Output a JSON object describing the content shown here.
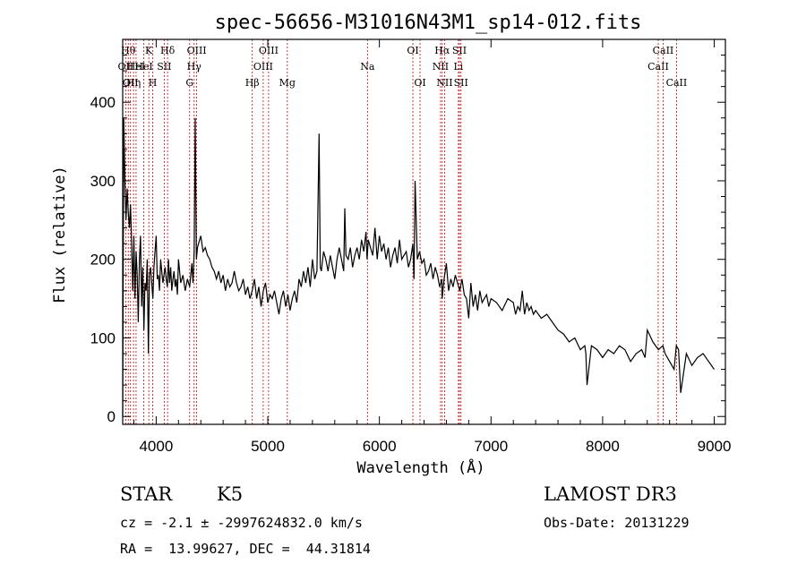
{
  "chart_data": {
    "type": "line",
    "title": "spec-56656-M31016N43M1_sp14-012.fits",
    "xlabel": "Wavelength (Å)",
    "ylabel": "Flux (relative)",
    "xlim": [
      3700,
      9100
    ],
    "ylim": [
      -10,
      480
    ],
    "x_ticks": [
      4000,
      5000,
      6000,
      7000,
      8000,
      9000
    ],
    "y_ticks": [
      0,
      100,
      200,
      300,
      400
    ],
    "grid": false,
    "line_color": "#000000",
    "marker_color": "#cc0000",
    "series": [
      {
        "x": [
          3700,
          3710,
          3720,
          3730,
          3740,
          3750,
          3760,
          3770,
          3780,
          3790,
          3800,
          3810,
          3820,
          3830,
          3840,
          3850,
          3860,
          3870,
          3880,
          3890,
          3900,
          3910,
          3920,
          3930,
          3940,
          3950,
          3960,
          3970,
          3980,
          3990,
          4000,
          4010,
          4020,
          4030,
          4040,
          4050,
          4060,
          4070,
          4080,
          4090,
          4100,
          4110,
          4120,
          4130,
          4140,
          4150,
          4160,
          4170,
          4180,
          4190,
          4200,
          4220,
          4240,
          4260,
          4280,
          4300,
          4320,
          4330,
          4340,
          4350,
          4360,
          4370,
          4380,
          4400,
          4420,
          4440,
          4460,
          4480,
          4500,
          4520,
          4540,
          4560,
          4580,
          4600,
          4620,
          4640,
          4660,
          4680,
          4700,
          4720,
          4740,
          4760,
          4780,
          4800,
          4820,
          4840,
          4860,
          4880,
          4900,
          4920,
          4940,
          4960,
          4980,
          5000,
          5020,
          5040,
          5060,
          5080,
          5100,
          5120,
          5140,
          5160,
          5180,
          5200,
          5220,
          5240,
          5260,
          5280,
          5300,
          5320,
          5340,
          5360,
          5380,
          5400,
          5420,
          5440,
          5460,
          5470,
          5480,
          5500,
          5520,
          5540,
          5560,
          5580,
          5600,
          5620,
          5640,
          5660,
          5680,
          5690,
          5700,
          5720,
          5740,
          5760,
          5780,
          5800,
          5820,
          5840,
          5860,
          5880,
          5890,
          5900,
          5920,
          5940,
          5960,
          5980,
          6000,
          6020,
          6040,
          6060,
          6080,
          6100,
          6120,
          6140,
          6160,
          6180,
          6200,
          6220,
          6240,
          6260,
          6280,
          6300,
          6310,
          6320,
          6340,
          6360,
          6380,
          6400,
          6420,
          6440,
          6460,
          6480,
          6500,
          6520,
          6540,
          6560,
          6562,
          6580,
          6600,
          6620,
          6640,
          6660,
          6680,
          6700,
          6720,
          6740,
          6760,
          6780,
          6800,
          6820,
          6840,
          6860,
          6880,
          6900,
          6920,
          6940,
          6960,
          6980,
          7000,
          7050,
          7100,
          7150,
          7200,
          7220,
          7240,
          7260,
          7280,
          7300,
          7320,
          7340,
          7360,
          7380,
          7400,
          7450,
          7500,
          7550,
          7600,
          7650,
          7700,
          7750,
          7800,
          7840,
          7850,
          7860,
          7900,
          7950,
          8000,
          8050,
          8100,
          8150,
          8200,
          8250,
          8300,
          8350,
          8380,
          8400,
          8450,
          8500,
          8540,
          8560,
          8600,
          8640,
          8660,
          8680,
          8700,
          8750,
          8800,
          8850,
          8900,
          8950,
          9000
        ],
        "y": [
          0,
          380,
          300,
          250,
          290,
          260,
          240,
          270,
          220,
          160,
          230,
          150,
          210,
          180,
          120,
          200,
          230,
          140,
          190,
          110,
          170,
          160,
          200,
          80,
          180,
          190,
          170,
          150,
          190,
          210,
          230,
          175,
          180,
          160,
          200,
          185,
          170,
          180,
          190,
          175,
          165,
          200,
          170,
          190,
          160,
          175,
          185,
          165,
          175,
          155,
          200,
          170,
          180,
          160,
          175,
          165,
          195,
          170,
          210,
          380,
          200,
          215,
          220,
          230,
          210,
          215,
          205,
          200,
          190,
          185,
          175,
          185,
          170,
          180,
          160,
          175,
          165,
          170,
          185,
          170,
          160,
          165,
          175,
          155,
          165,
          150,
          160,
          175,
          150,
          165,
          140,
          160,
          170,
          145,
          155,
          150,
          160,
          145,
          130,
          150,
          160,
          140,
          155,
          135,
          150,
          160,
          145,
          175,
          165,
          185,
          170,
          190,
          165,
          200,
          175,
          185,
          360,
          190,
          185,
          210,
          200,
          185,
          205,
          190,
          175,
          200,
          215,
          200,
          185,
          265,
          205,
          200,
          215,
          190,
          205,
          215,
          200,
          225,
          210,
          235,
          200,
          225,
          215,
          205,
          240,
          200,
          230,
          210,
          220,
          200,
          215,
          190,
          205,
          215,
          195,
          225,
          200,
          205,
          210,
          190,
          200,
          220,
          175,
          300,
          200,
          210,
          195,
          200,
          180,
          185,
          195,
          175,
          190,
          180,
          165,
          175,
          150,
          175,
          195,
          160,
          175,
          165,
          180,
          170,
          160,
          175,
          155,
          150,
          125,
          170,
          140,
          155,
          135,
          160,
          145,
          150,
          155,
          140,
          150,
          145,
          135,
          150,
          145,
          130,
          140,
          135,
          160,
          130,
          145,
          135,
          140,
          130,
          135,
          125,
          130,
          120,
          110,
          105,
          95,
          100,
          85,
          90,
          80,
          40,
          90,
          85,
          75,
          85,
          80,
          90,
          85,
          70,
          80,
          85,
          75,
          110,
          95,
          85,
          90,
          80,
          70,
          60,
          90,
          85,
          30,
          80,
          65,
          75,
          80,
          70,
          60
        ]
      }
    ],
    "lines": [
      {
        "x": 3727,
        "label": "OII",
        "row": 2
      },
      {
        "x": 3750,
        "label": "Hθ",
        "row": 1
      },
      {
        "x": 3770,
        "label": "OII",
        "row": 3
      },
      {
        "x": 3797,
        "label": "Hη",
        "row": 3
      },
      {
        "x": 3820,
        "label": "HeI",
        "row": 2
      },
      {
        "x": 3889,
        "label": "HeI",
        "row": 2
      },
      {
        "x": 3934,
        "label": "K",
        "row": 1
      },
      {
        "x": 3969,
        "label": "H",
        "row": 3
      },
      {
        "x": 4072,
        "label": "SII",
        "row": 2
      },
      {
        "x": 4102,
        "label": "Hδ",
        "row": 1
      },
      {
        "x": 4300,
        "label": "G",
        "row": 3
      },
      {
        "x": 4340,
        "label": "Hγ",
        "row": 2
      },
      {
        "x": 4363,
        "label": "OIII",
        "row": 1
      },
      {
        "x": 4861,
        "label": "Hβ",
        "row": 3
      },
      {
        "x": 4959,
        "label": "OIII",
        "row": 2
      },
      {
        "x": 5007,
        "label": "OIII",
        "row": 1
      },
      {
        "x": 5175,
        "label": "Mg",
        "row": 3
      },
      {
        "x": 5893,
        "label": "Na",
        "row": 2
      },
      {
        "x": 6300,
        "label": "OI",
        "row": 1
      },
      {
        "x": 6364,
        "label": "OI",
        "row": 3
      },
      {
        "x": 6548,
        "label": "NII",
        "row": 2
      },
      {
        "x": 6563,
        "label": "Hα",
        "row": 1
      },
      {
        "x": 6584,
        "label": "NII",
        "row": 3
      },
      {
        "x": 6708,
        "label": "Li",
        "row": 2
      },
      {
        "x": 6717,
        "label": "SII",
        "row": 1
      },
      {
        "x": 6731,
        "label": "SII",
        "row": 3
      },
      {
        "x": 8498,
        "label": "CaII",
        "row": 2
      },
      {
        "x": 8542,
        "label": "CaII",
        "row": 1
      },
      {
        "x": 8662,
        "label": "CaII",
        "row": 3
      }
    ]
  },
  "info": {
    "class": "STAR",
    "subclass": "K5",
    "survey": "LAMOST DR3",
    "cz": "cz = -2.1 ± -2997624832.0 km/s",
    "obs_date": "Obs-Date: 20131229",
    "coords": "RA =  13.99627, DEC =  44.31814"
  }
}
